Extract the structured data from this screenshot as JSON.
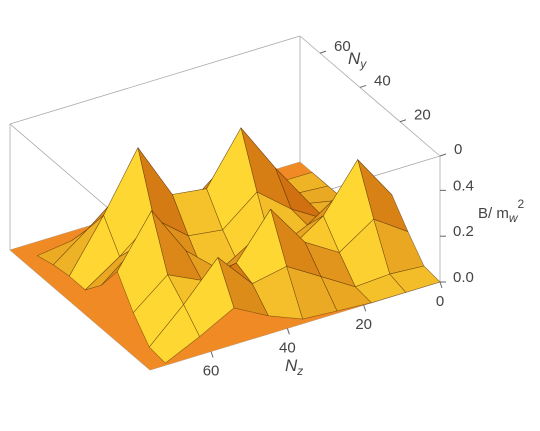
{
  "chart_data": {
    "type": "surface3d",
    "xlabel": {
      "text": "N",
      "subscript": "z"
    },
    "ylabel": {
      "text": "N",
      "subscript": "y"
    },
    "zlabel": {
      "text": "B/ m",
      "subscript": "w",
      "superscript": "2"
    },
    "x": [
      0,
      9,
      18,
      27,
      36,
      45,
      54,
      63,
      72
    ],
    "y": [
      0,
      8,
      16,
      24,
      32,
      40,
      48,
      56,
      64
    ],
    "z": [
      [
        0,
        0,
        0,
        0.01,
        0.02,
        0.08,
        0.16,
        0.08,
        0.01
      ],
      [
        0.01,
        0.02,
        0.01,
        0.1,
        0.19,
        0.16,
        0.32,
        0.16,
        0.02
      ],
      [
        0.1,
        0.2,
        0.1,
        0.19,
        0.38,
        0.19,
        0.16,
        0.23,
        0.11
      ],
      [
        0.2,
        0.4,
        0.2,
        0.1,
        0.19,
        0.1,
        0.23,
        0.45,
        0.23
      ],
      [
        0.1,
        0.2,
        0.1,
        0.03,
        0.02,
        0.02,
        0.11,
        0.23,
        0.11
      ],
      [
        0.01,
        0.02,
        0.11,
        0.23,
        0.11,
        0.13,
        0.25,
        0.13,
        0.03
      ],
      [
        0,
        0.03,
        0.23,
        0.45,
        0.23,
        0.25,
        0.5,
        0.25,
        0.03
      ],
      [
        0,
        0.01,
        0.11,
        0.23,
        0.11,
        0.13,
        0.25,
        0.13,
        0.02
      ],
      [
        0,
        0,
        0.01,
        0.03,
        0.01,
        0.02,
        0.03,
        0.02,
        0
      ]
    ],
    "xlim": [
      0,
      76
    ],
    "ylim": [
      0,
      70
    ],
    "zlim": [
      0,
      0.55
    ],
    "xticks": [
      0,
      20,
      40,
      60
    ],
    "yticks": [
      0,
      20,
      40,
      60
    ],
    "zticks": [
      {
        "value": 0,
        "label": "0.0"
      },
      {
        "value": 0.2,
        "label": "0.2"
      },
      {
        "value": 0.4,
        "label": "0.4"
      }
    ],
    "color": "#f39c1e"
  }
}
